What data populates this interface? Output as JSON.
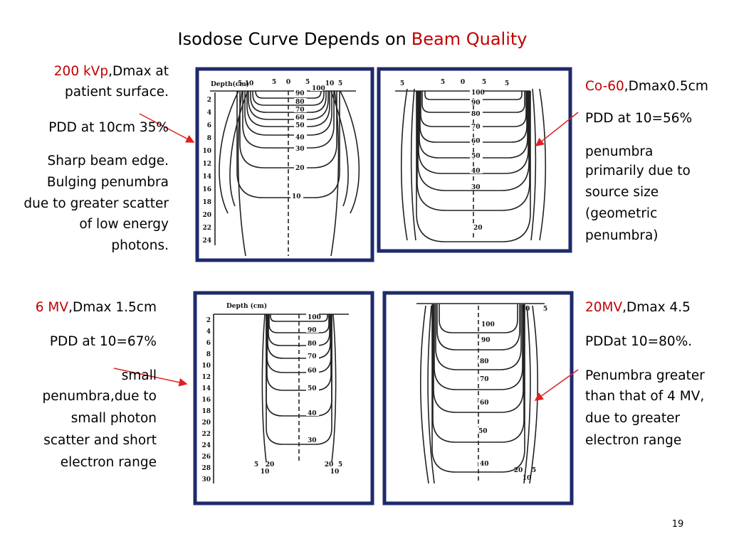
{
  "title": {
    "text": "Isodose Curve Depends on",
    "highlight": "Beam Quality"
  },
  "blocks": [
    {
      "highlight": "200 kVp",
      "lines": [
        ",Dmax at",
        "patient surface.",
        "PDD at 10cm 35%",
        "Sharp beam edge.",
        "Bulging penumbra",
        "due to greater scatter",
        "of low energy",
        "photons."
      ]
    },
    {
      "highlight": "Co-60",
      "lines": [
        ",Dmax0.5cm",
        "PDD at 10=56%",
        "penumbra",
        "primarily due to",
        "source size",
        "(geometric",
        "penumbra)"
      ]
    },
    {
      "highlight": "6 MV",
      "lines": [
        ",Dmax 1.5cm",
        "PDD at 10=67%",
        "small",
        "penumbra,due to",
        "small photon",
        "scatter and short",
        "electron range"
      ]
    },
    {
      "highlight": "20MV",
      "lines": [
        ",Dmax 4.5",
        "PDDat 10=80%.",
        "Penumbra greater",
        "than that of 4 MV,",
        "due to greater",
        "electron range"
      ]
    }
  ],
  "figures": [
    {
      "axis_label": "Depth(cm)",
      "depth_labels": [
        "2",
        "4",
        "6",
        "8",
        "10",
        "12",
        "14",
        "16",
        "18",
        "20",
        "22",
        "24"
      ],
      "isodose_labels": [
        "100",
        "90",
        "80",
        "70",
        "60",
        "50",
        "40",
        "30",
        "20",
        "10"
      ],
      "edge_labels": [
        "5",
        "10",
        "5",
        "0",
        "5",
        "10",
        "5"
      ]
    },
    {
      "isodose_labels": [
        "100",
        "90",
        "80",
        "70",
        "60",
        "50",
        "40",
        "30",
        "20"
      ],
      "edge_labels": [
        "5",
        "5",
        "0",
        "5",
        "5"
      ]
    },
    {
      "axis_label": "Depth (cm)",
      "depth_labels": [
        "2",
        "4",
        "6",
        "8",
        "10",
        "12",
        "14",
        "16",
        "18",
        "20",
        "22",
        "24",
        "26",
        "28",
        "30"
      ],
      "isodose_labels": [
        "100",
        "90",
        "80",
        "70",
        "60",
        "50",
        "40",
        "30"
      ],
      "edge_labels": [
        "5",
        "20",
        "10",
        "20",
        "5",
        "10"
      ]
    },
    {
      "isodose_labels": [
        "100",
        "90",
        "80",
        "70",
        "60",
        "50",
        "40"
      ],
      "edge_labels": [
        "10",
        "5",
        "20",
        "5",
        "10"
      ]
    }
  ],
  "page_number": "19"
}
